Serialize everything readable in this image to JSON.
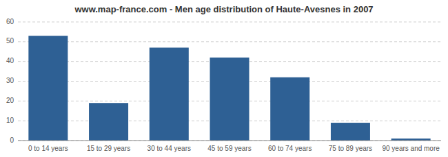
{
  "chart_data": {
    "type": "bar",
    "title": "www.map-france.com - Men age distribution of Haute-Avesnes in 2007",
    "categories": [
      "0 to 14 years",
      "15 to 29 years",
      "30 to 44 years",
      "45 to 59 years",
      "60 to 74 years",
      "75 to 89 years",
      "90 years and more"
    ],
    "values": [
      53,
      19,
      47,
      42,
      32,
      9,
      1
    ],
    "color": "#2e6094",
    "ylim": [
      0,
      60
    ],
    "yticks": [
      0,
      10,
      20,
      30,
      40,
      50,
      60
    ],
    "grid": true
  }
}
